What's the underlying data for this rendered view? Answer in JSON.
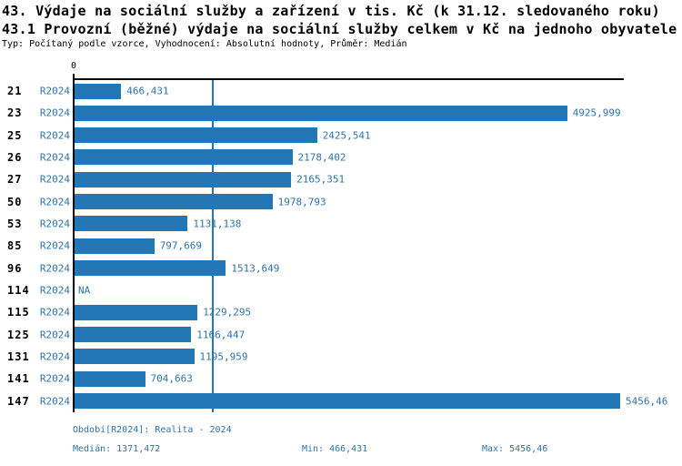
{
  "page": {
    "title": "43. Výdaje na sociální služby a zařízení v tis. Kč (k 31.12. sledovaného roku)",
    "subtitle": "43.1 Provozní (běžné) výdaje na sociální služby celkem v Kč na jednoho obyvatele",
    "meta": "Typ: Počítaný podle vzorce, Vyhodnocení: Absolutní hodnoty, Průměr: Medián"
  },
  "axis": {
    "zero_label": "0"
  },
  "footer": {
    "period": "Období[R2024]: Realita - 2024",
    "median": "Medián: 1371,472",
    "min": "Min: 466,431",
    "max": "Max: 5456,46"
  },
  "colors": {
    "accent": "#2377b4",
    "blue_text": "#2d74ab",
    "axis": "#000000",
    "background": "#ffffff"
  },
  "chart_data": {
    "type": "bar",
    "orientation": "horizontal",
    "title": "43. Výdaje na sociální služby a zařízení v tis. Kč (k 31.12. sledovaného roku)",
    "subtitle": "43.1 Provozní (běžné) výdaje na sociální služby celkem v Kč na jednoho obyvatele",
    "period_label": "R2024",
    "xlim": [
      0,
      5456.46
    ],
    "x_tick_labels": [
      "0"
    ],
    "median_value": 1371.472,
    "min_value": 466.431,
    "max_value": 5456.46,
    "grid": "median-line-only",
    "rows": [
      {
        "category": "21",
        "period": "R2024",
        "value": 466.431,
        "label": "466,431"
      },
      {
        "category": "23",
        "period": "R2024",
        "value": 4925.999,
        "label": "4925,999"
      },
      {
        "category": "25",
        "period": "R2024",
        "value": 2425.541,
        "label": "2425,541"
      },
      {
        "category": "26",
        "period": "R2024",
        "value": 2178.402,
        "label": "2178,402"
      },
      {
        "category": "27",
        "period": "R2024",
        "value": 2165.351,
        "label": "2165,351"
      },
      {
        "category": "50",
        "period": "R2024",
        "value": 1978.793,
        "label": "1978,793"
      },
      {
        "category": "53",
        "period": "R2024",
        "value": 1131.138,
        "label": "1131,138"
      },
      {
        "category": "85",
        "period": "R2024",
        "value": 797.669,
        "label": "797,669"
      },
      {
        "category": "96",
        "period": "R2024",
        "value": 1513.649,
        "label": "1513,649"
      },
      {
        "category": "114",
        "period": "R2024",
        "value": null,
        "label": "NA"
      },
      {
        "category": "115",
        "period": "R2024",
        "value": 1229.295,
        "label": "1229,295"
      },
      {
        "category": "125",
        "period": "R2024",
        "value": 1166.447,
        "label": "1166,447"
      },
      {
        "category": "131",
        "period": "R2024",
        "value": 1195.959,
        "label": "1195,959"
      },
      {
        "category": "141",
        "period": "R2024",
        "value": 704.663,
        "label": "704,663"
      },
      {
        "category": "147",
        "period": "R2024",
        "value": 5456.46,
        "label": "5456,46"
      }
    ]
  }
}
